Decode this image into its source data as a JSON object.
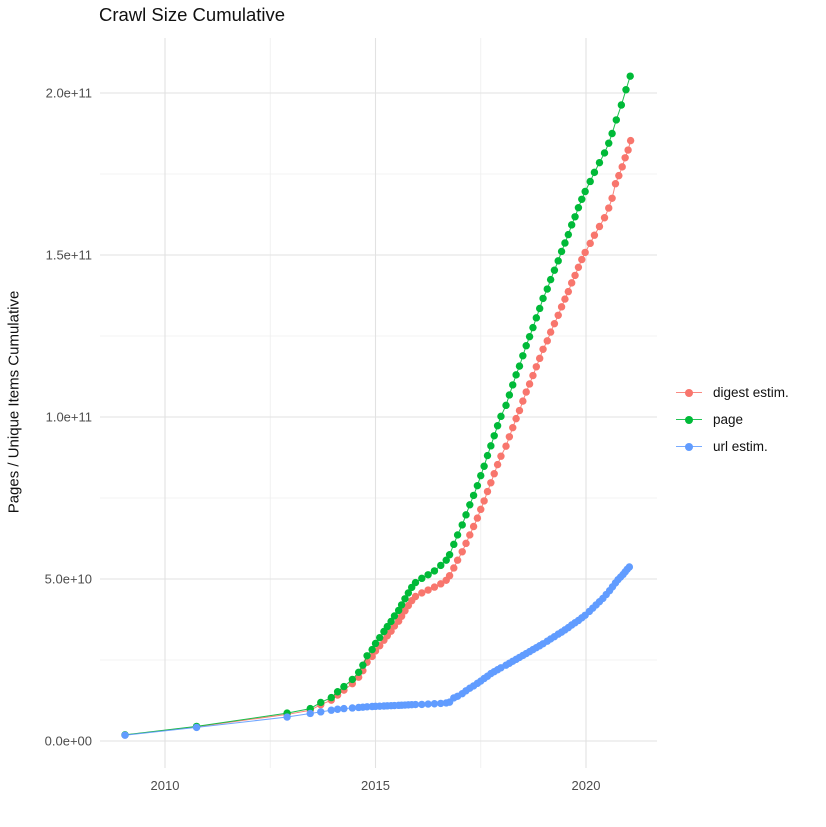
{
  "chart_data": {
    "type": "scatter",
    "title": "Crawl Size Cumulative",
    "xlabel": "",
    "ylabel": "Pages / Unique Items Cumulative",
    "legend_position": "right",
    "grid": true,
    "background": "#ffffff",
    "gridline_major_color": "#e2e2e2",
    "gridline_minor_color": "#efefef",
    "tick_label_color": "#4d4d4d",
    "xlim": [
      2008.6,
      2021.8
    ],
    "ylim": [
      0,
      217000000000.0
    ],
    "value_unit": "points stored in billions (1e9)",
    "yticks": [
      {
        "label": "0.0e+00",
        "value_billions": 0
      },
      {
        "label": "5.0e+10",
        "value_billions": 50
      },
      {
        "label": "1.0e+11",
        "value_billions": 100
      },
      {
        "label": "1.5e+11",
        "value_billions": 150
      },
      {
        "label": "2.0e+11",
        "value_billions": 200
      }
    ],
    "minor_yticks_billions": [
      25,
      75,
      125,
      175
    ],
    "xticks": [
      {
        "label": "2010",
        "value": 2010
      },
      {
        "label": "2015",
        "value": 2015
      },
      {
        "label": "2020",
        "value": 2020
      }
    ],
    "minor_xticks": [
      2012.5,
      2017.5
    ],
    "series": [
      {
        "name": "digest estim.",
        "color": "#F8766D",
        "points_billions": [
          [
            2009.05,
            1.85
          ],
          [
            2010.75,
            4.4
          ],
          [
            2012.9,
            8.2
          ],
          [
            2013.45,
            9.5
          ],
          [
            2013.7,
            11.2
          ],
          [
            2013.95,
            12.6
          ],
          [
            2014.1,
            14.2
          ],
          [
            2014.25,
            15.7
          ],
          [
            2014.45,
            17.7
          ],
          [
            2014.6,
            19.7
          ],
          [
            2014.7,
            21.7
          ],
          [
            2014.8,
            24.3
          ],
          [
            2014.92,
            26.1
          ],
          [
            2015.0,
            27.8
          ],
          [
            2015.1,
            29.4
          ],
          [
            2015.2,
            31.1
          ],
          [
            2015.28,
            32.5
          ],
          [
            2015.37,
            33.9
          ],
          [
            2015.45,
            35.5
          ],
          [
            2015.55,
            37.0
          ],
          [
            2015.62,
            38.5
          ],
          [
            2015.7,
            40.2
          ],
          [
            2015.78,
            41.8
          ],
          [
            2015.86,
            43.3
          ],
          [
            2015.95,
            44.6
          ],
          [
            2016.1,
            45.7
          ],
          [
            2016.25,
            46.6
          ],
          [
            2016.4,
            47.5
          ],
          [
            2016.55,
            48.5
          ],
          [
            2016.68,
            49.6
          ],
          [
            2016.76,
            51.0
          ],
          [
            2016.86,
            53.4
          ],
          [
            2016.95,
            55.8
          ],
          [
            2017.06,
            58.4
          ],
          [
            2017.15,
            61.0
          ],
          [
            2017.24,
            63.6
          ],
          [
            2017.33,
            66.2
          ],
          [
            2017.42,
            68.8
          ],
          [
            2017.5,
            71.5
          ],
          [
            2017.58,
            74.1
          ],
          [
            2017.66,
            77.0
          ],
          [
            2017.74,
            79.7
          ],
          [
            2017.82,
            82.5
          ],
          [
            2017.9,
            85.3
          ],
          [
            2017.98,
            87.9
          ],
          [
            2018.1,
            91.0
          ],
          [
            2018.18,
            93.9
          ],
          [
            2018.26,
            96.7
          ],
          [
            2018.34,
            99.5
          ],
          [
            2018.42,
            102.0
          ],
          [
            2018.5,
            104.9
          ],
          [
            2018.58,
            107.7
          ],
          [
            2018.66,
            110.2
          ],
          [
            2018.74,
            112.8
          ],
          [
            2018.82,
            115.5
          ],
          [
            2018.9,
            118.1
          ],
          [
            2018.98,
            120.9
          ],
          [
            2019.08,
            123.5
          ],
          [
            2019.16,
            126.2
          ],
          [
            2019.25,
            128.8
          ],
          [
            2019.34,
            131.4
          ],
          [
            2019.42,
            134.0
          ],
          [
            2019.5,
            136.4
          ],
          [
            2019.58,
            138.7
          ],
          [
            2019.66,
            141.4
          ],
          [
            2019.74,
            143.7
          ],
          [
            2019.82,
            146.2
          ],
          [
            2019.9,
            148.6
          ],
          [
            2019.98,
            150.8
          ],
          [
            2020.1,
            153.6
          ],
          [
            2020.2,
            156.1
          ],
          [
            2020.32,
            158.8
          ],
          [
            2020.44,
            161.5
          ],
          [
            2020.54,
            164.5
          ],
          [
            2020.62,
            167.5
          ],
          [
            2020.7,
            172.0
          ],
          [
            2020.78,
            174.5
          ],
          [
            2020.86,
            177.2
          ],
          [
            2020.93,
            180.0
          ],
          [
            2021.0,
            182.4
          ],
          [
            2021.06,
            185.3
          ]
        ]
      },
      {
        "name": "page",
        "color": "#00BA38",
        "points_billions": [
          [
            2009.05,
            1.9
          ],
          [
            2010.75,
            4.5
          ],
          [
            2012.9,
            8.6
          ],
          [
            2013.45,
            10.0
          ],
          [
            2013.7,
            11.9
          ],
          [
            2013.95,
            13.4
          ],
          [
            2014.1,
            15.2
          ],
          [
            2014.25,
            16.8
          ],
          [
            2014.45,
            19.0
          ],
          [
            2014.6,
            21.2
          ],
          [
            2014.7,
            23.4
          ],
          [
            2014.8,
            26.3
          ],
          [
            2014.92,
            28.2
          ],
          [
            2015.0,
            30.1
          ],
          [
            2015.1,
            31.9
          ],
          [
            2015.2,
            33.8
          ],
          [
            2015.28,
            35.3
          ],
          [
            2015.37,
            36.9
          ],
          [
            2015.45,
            38.6
          ],
          [
            2015.55,
            40.3
          ],
          [
            2015.62,
            42.0
          ],
          [
            2015.7,
            43.9
          ],
          [
            2015.78,
            45.7
          ],
          [
            2015.86,
            47.4
          ],
          [
            2015.95,
            48.9
          ],
          [
            2016.1,
            50.2
          ],
          [
            2016.25,
            51.3
          ],
          [
            2016.4,
            52.5
          ],
          [
            2016.55,
            54.2
          ],
          [
            2016.68,
            55.8
          ],
          [
            2016.76,
            57.5
          ],
          [
            2016.86,
            60.7
          ],
          [
            2016.95,
            63.6
          ],
          [
            2017.06,
            66.7
          ],
          [
            2017.15,
            69.8
          ],
          [
            2017.24,
            72.9
          ],
          [
            2017.33,
            75.8
          ],
          [
            2017.42,
            78.8
          ],
          [
            2017.5,
            81.9
          ],
          [
            2017.58,
            84.8
          ],
          [
            2017.66,
            88.1
          ],
          [
            2017.74,
            91.1
          ],
          [
            2017.82,
            94.2
          ],
          [
            2017.9,
            97.3
          ],
          [
            2017.98,
            100.2
          ],
          [
            2018.1,
            103.6
          ],
          [
            2018.18,
            106.8
          ],
          [
            2018.26,
            109.9
          ],
          [
            2018.34,
            113.0
          ],
          [
            2018.42,
            115.7
          ],
          [
            2018.5,
            118.9
          ],
          [
            2018.58,
            122.0
          ],
          [
            2018.66,
            124.8
          ],
          [
            2018.74,
            127.6
          ],
          [
            2018.82,
            130.6
          ],
          [
            2018.9,
            133.5
          ],
          [
            2018.98,
            136.6
          ],
          [
            2019.08,
            139.5
          ],
          [
            2019.16,
            142.4
          ],
          [
            2019.25,
            145.3
          ],
          [
            2019.34,
            148.2
          ],
          [
            2019.42,
            151.1
          ],
          [
            2019.5,
            153.7
          ],
          [
            2019.58,
            156.3
          ],
          [
            2019.66,
            159.3
          ],
          [
            2019.74,
            161.8
          ],
          [
            2019.82,
            164.6
          ],
          [
            2019.9,
            167.2
          ],
          [
            2019.98,
            169.6
          ],
          [
            2020.1,
            172.7
          ],
          [
            2020.2,
            175.5
          ],
          [
            2020.32,
            178.5
          ],
          [
            2020.44,
            181.5
          ],
          [
            2020.54,
            184.5
          ],
          [
            2020.62,
            187.5
          ],
          [
            2020.72,
            191.7
          ],
          [
            2020.84,
            196.3
          ],
          [
            2020.95,
            201.0
          ],
          [
            2021.05,
            205.2
          ]
        ]
      },
      {
        "name": "url estim.",
        "color": "#619CFF",
        "points_billions": [
          [
            2009.05,
            1.8
          ],
          [
            2010.75,
            4.2
          ],
          [
            2012.9,
            7.4
          ],
          [
            2013.45,
            8.5
          ],
          [
            2013.7,
            9.0
          ],
          [
            2013.95,
            9.5
          ],
          [
            2014.1,
            9.8
          ],
          [
            2014.25,
            10.0
          ],
          [
            2014.45,
            10.2
          ],
          [
            2014.6,
            10.35
          ],
          [
            2014.7,
            10.45
          ],
          [
            2014.8,
            10.55
          ],
          [
            2014.92,
            10.65
          ],
          [
            2015.0,
            10.7
          ],
          [
            2015.1,
            10.75
          ],
          [
            2015.2,
            10.8
          ],
          [
            2015.28,
            10.85
          ],
          [
            2015.37,
            10.9
          ],
          [
            2015.45,
            10.95
          ],
          [
            2015.55,
            11.0
          ],
          [
            2015.62,
            11.05
          ],
          [
            2015.7,
            11.1
          ],
          [
            2015.78,
            11.15
          ],
          [
            2015.86,
            11.2
          ],
          [
            2015.95,
            11.25
          ],
          [
            2016.1,
            11.3
          ],
          [
            2016.25,
            11.4
          ],
          [
            2016.4,
            11.5
          ],
          [
            2016.55,
            11.6
          ],
          [
            2016.68,
            11.75
          ],
          [
            2016.76,
            12.0
          ],
          [
            2016.86,
            13.3
          ],
          [
            2016.95,
            13.8
          ],
          [
            2017.06,
            14.6
          ],
          [
            2017.15,
            15.5
          ],
          [
            2017.24,
            16.3
          ],
          [
            2017.33,
            17.0
          ],
          [
            2017.42,
            17.8
          ],
          [
            2017.5,
            18.5
          ],
          [
            2017.58,
            19.3
          ],
          [
            2017.66,
            20.0
          ],
          [
            2017.74,
            20.8
          ],
          [
            2017.82,
            21.4
          ],
          [
            2017.9,
            22.0
          ],
          [
            2017.98,
            22.6
          ],
          [
            2018.1,
            23.4
          ],
          [
            2018.18,
            24.0
          ],
          [
            2018.26,
            24.6
          ],
          [
            2018.34,
            25.2
          ],
          [
            2018.42,
            25.8
          ],
          [
            2018.5,
            26.4
          ],
          [
            2018.58,
            27.0
          ],
          [
            2018.66,
            27.6
          ],
          [
            2018.74,
            28.2
          ],
          [
            2018.82,
            28.8
          ],
          [
            2018.9,
            29.4
          ],
          [
            2018.98,
            30.0
          ],
          [
            2019.08,
            30.8
          ],
          [
            2019.16,
            31.5
          ],
          [
            2019.25,
            32.2
          ],
          [
            2019.34,
            33.0
          ],
          [
            2019.42,
            33.6
          ],
          [
            2019.5,
            34.3
          ],
          [
            2019.58,
            35.0
          ],
          [
            2019.66,
            35.8
          ],
          [
            2019.74,
            36.5
          ],
          [
            2019.82,
            37.2
          ],
          [
            2019.9,
            38.0
          ],
          [
            2019.98,
            38.8
          ],
          [
            2020.08,
            40.0
          ],
          [
            2020.16,
            41.0
          ],
          [
            2020.24,
            42.0
          ],
          [
            2020.32,
            43.0
          ],
          [
            2020.4,
            44.0
          ],
          [
            2020.48,
            45.2
          ],
          [
            2020.56,
            46.4
          ],
          [
            2020.63,
            47.6
          ],
          [
            2020.7,
            48.8
          ],
          [
            2020.76,
            49.8
          ],
          [
            2020.82,
            50.6
          ],
          [
            2020.88,
            51.4
          ],
          [
            2020.93,
            52.2
          ],
          [
            2020.98,
            53.0
          ],
          [
            2021.03,
            53.7
          ]
        ]
      }
    ]
  }
}
